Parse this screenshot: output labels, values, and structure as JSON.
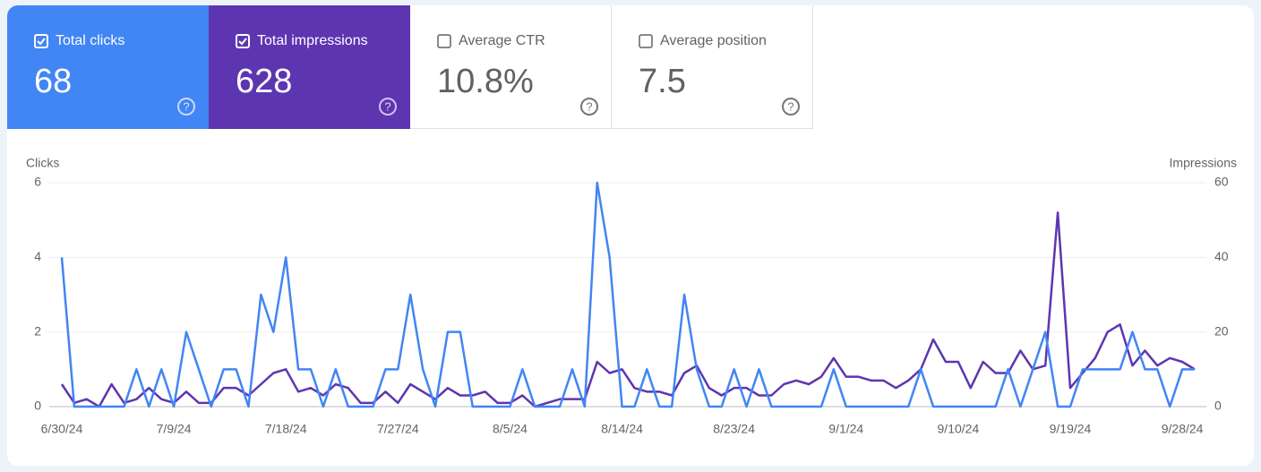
{
  "cards": [
    {
      "label": "Total clicks",
      "value": "68"
    },
    {
      "label": "Total impressions",
      "value": "628"
    },
    {
      "label": "Average CTR",
      "value": "10.8%"
    },
    {
      "label": "Average position",
      "value": "7.5"
    }
  ],
  "chart_data": {
    "type": "line",
    "y_label": "Clicks",
    "y2_label": "Impressions",
    "x": [
      "6/30/24",
      null,
      null,
      null,
      null,
      null,
      null,
      null,
      null,
      "7/9/24",
      null,
      null,
      null,
      null,
      null,
      null,
      null,
      null,
      "7/18/24",
      null,
      null,
      null,
      null,
      null,
      null,
      null,
      null,
      "7/27/24",
      null,
      null,
      null,
      null,
      null,
      null,
      null,
      null,
      "8/5/24",
      null,
      null,
      null,
      null,
      null,
      null,
      null,
      null,
      "8/14/24",
      null,
      null,
      null,
      null,
      null,
      null,
      null,
      null,
      "8/23/24",
      null,
      null,
      null,
      null,
      null,
      null,
      null,
      null,
      "9/1/24",
      null,
      null,
      null,
      null,
      null,
      null,
      null,
      null,
      "9/10/24",
      null,
      null,
      null,
      null,
      null,
      null,
      null,
      null,
      "9/19/24",
      null,
      null,
      null,
      null,
      null,
      null,
      null,
      null,
      "9/28/24",
      null
    ],
    "ylim": [
      0,
      6
    ],
    "yticks": [
      0,
      2,
      4,
      6
    ],
    "y2lim": [
      0,
      60
    ],
    "y2ticks": [
      0,
      20,
      40,
      60
    ],
    "grid": true,
    "series": [
      {
        "name": "Total impressions",
        "color": "#5e35b1",
        "axis": "y2",
        "values": [
          6,
          1,
          2,
          0,
          6,
          1,
          2,
          5,
          2,
          1,
          4,
          1,
          1,
          5,
          5,
          3,
          6,
          9,
          10,
          4,
          5,
          3,
          6,
          5,
          1,
          1,
          4,
          1,
          6,
          4,
          2,
          5,
          3,
          3,
          4,
          1,
          1,
          3,
          0,
          1,
          2,
          2,
          2,
          12,
          9,
          10,
          5,
          4,
          4,
          3,
          9,
          11,
          5,
          3,
          5,
          5,
          3,
          3,
          6,
          7,
          6,
          8,
          13,
          8,
          8,
          7,
          7,
          5,
          7,
          10,
          18,
          12,
          12,
          5,
          12,
          9,
          9,
          15,
          10,
          11,
          52,
          5,
          9,
          13,
          20,
          22,
          11,
          15,
          11,
          13,
          12,
          10
        ]
      },
      {
        "name": "Total clicks",
        "color": "#4285f4",
        "axis": "y",
        "values": [
          4,
          0,
          0,
          0,
          0,
          0,
          1,
          0,
          1,
          0,
          2,
          1,
          0,
          1,
          1,
          0,
          3,
          2,
          4,
          1,
          1,
          0,
          1,
          0,
          0,
          0,
          1,
          1,
          3,
          1,
          0,
          2,
          2,
          0,
          0,
          0,
          0,
          1,
          0,
          0,
          0,
          1,
          0,
          6,
          4,
          0,
          0,
          1,
          0,
          0,
          3,
          1,
          0,
          0,
          1,
          0,
          1,
          0,
          0,
          0,
          0,
          0,
          1,
          0,
          0,
          0,
          0,
          0,
          0,
          1,
          0,
          0,
          0,
          0,
          0,
          0,
          1,
          0,
          1,
          2,
          0,
          0,
          1,
          1,
          1,
          1,
          2,
          1,
          1,
          0,
          1,
          1
        ]
      }
    ]
  }
}
